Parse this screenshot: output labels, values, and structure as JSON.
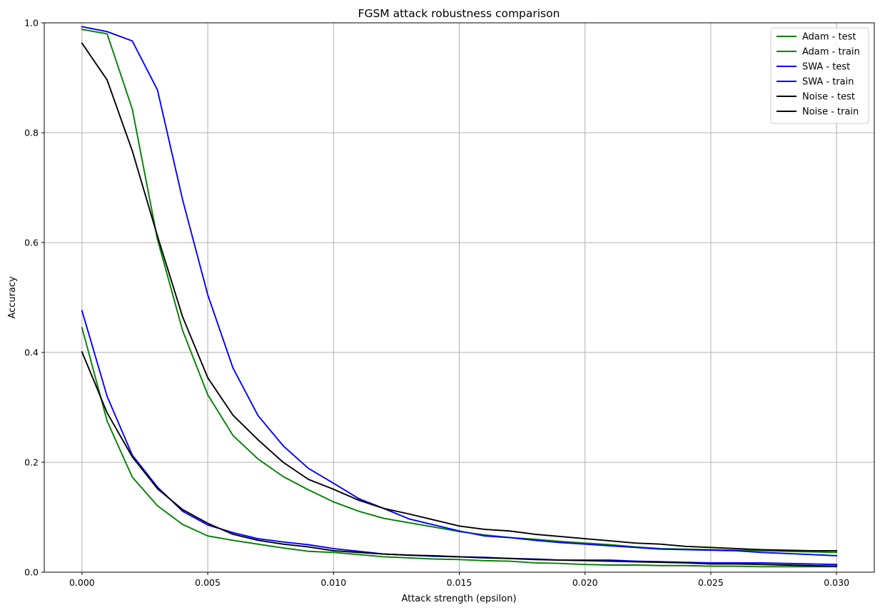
{
  "chart_data": {
    "type": "line",
    "title": "FGSM attack robustness comparison",
    "xlabel": "Attack strength (epsilon)",
    "ylabel": "Accuracy",
    "xlim": [
      -0.0015,
      0.0315
    ],
    "ylim": [
      0.0,
      1.0
    ],
    "xticks": [
      0.0,
      0.005,
      0.01,
      0.015,
      0.02,
      0.025,
      0.03
    ],
    "xtick_labels": [
      "0.000",
      "0.005",
      "0.010",
      "0.015",
      "0.020",
      "0.025",
      "0.030"
    ],
    "yticks": [
      0.0,
      0.2,
      0.4,
      0.6,
      0.8,
      1.0
    ],
    "ytick_labels": [
      "0.0",
      "0.2",
      "0.4",
      "0.6",
      "0.8",
      "1.0"
    ],
    "grid": true,
    "legend_position": "top-right",
    "x": [
      0.0,
      0.001,
      0.002,
      0.003,
      0.004,
      0.005,
      0.006,
      0.007,
      0.008,
      0.009,
      0.01,
      0.011,
      0.012,
      0.013,
      0.014,
      0.015,
      0.016,
      0.017,
      0.018,
      0.019,
      0.02,
      0.021,
      0.022,
      0.023,
      0.024,
      0.025,
      0.026,
      0.027,
      0.028,
      0.029,
      0.03
    ],
    "series": [
      {
        "name": "Adam - test",
        "color": "#008000",
        "values": [
          0.445,
          0.275,
          0.173,
          0.121,
          0.087,
          0.066,
          0.058,
          0.051,
          0.044,
          0.038,
          0.036,
          0.032,
          0.028,
          0.026,
          0.024,
          0.023,
          0.021,
          0.02,
          0.017,
          0.016,
          0.014,
          0.013,
          0.013,
          0.012,
          0.012,
          0.011,
          0.011,
          0.01,
          0.01,
          0.01,
          0.01
        ]
      },
      {
        "name": "Adam - train",
        "color": "#008000",
        "values": [
          0.988,
          0.98,
          0.843,
          0.606,
          0.44,
          0.323,
          0.249,
          0.206,
          0.174,
          0.15,
          0.128,
          0.111,
          0.098,
          0.09,
          0.082,
          0.074,
          0.068,
          0.063,
          0.06,
          0.056,
          0.053,
          0.05,
          0.046,
          0.043,
          0.042,
          0.041,
          0.04,
          0.039,
          0.038,
          0.037,
          0.036
        ]
      },
      {
        "name": "SWA - test",
        "color": "#0000ff",
        "values": [
          0.476,
          0.32,
          0.213,
          0.155,
          0.111,
          0.086,
          0.072,
          0.061,
          0.055,
          0.05,
          0.043,
          0.038,
          0.033,
          0.031,
          0.029,
          0.028,
          0.027,
          0.025,
          0.024,
          0.022,
          0.022,
          0.022,
          0.02,
          0.019,
          0.018,
          0.017,
          0.017,
          0.017,
          0.016,
          0.015,
          0.014
        ]
      },
      {
        "name": "SWA - train",
        "color": "#0000ff",
        "values": [
          0.993,
          0.984,
          0.967,
          0.878,
          0.678,
          0.505,
          0.372,
          0.285,
          0.23,
          0.189,
          0.162,
          0.134,
          0.116,
          0.097,
          0.086,
          0.075,
          0.066,
          0.063,
          0.058,
          0.054,
          0.051,
          0.048,
          0.045,
          0.042,
          0.041,
          0.04,
          0.039,
          0.036,
          0.034,
          0.032,
          0.03
        ]
      },
      {
        "name": "Noise - test",
        "color": "#000000",
        "values": [
          0.401,
          0.29,
          0.21,
          0.152,
          0.114,
          0.089,
          0.069,
          0.058,
          0.051,
          0.046,
          0.039,
          0.036,
          0.033,
          0.031,
          0.03,
          0.028,
          0.026,
          0.025,
          0.023,
          0.022,
          0.021,
          0.02,
          0.019,
          0.018,
          0.017,
          0.015,
          0.015,
          0.014,
          0.013,
          0.012,
          0.011
        ]
      },
      {
        "name": "Noise - train",
        "color": "#000000",
        "values": [
          0.963,
          0.896,
          0.767,
          0.612,
          0.465,
          0.354,
          0.286,
          0.241,
          0.2,
          0.169,
          0.151,
          0.131,
          0.116,
          0.106,
          0.095,
          0.084,
          0.078,
          0.075,
          0.069,
          0.065,
          0.061,
          0.057,
          0.053,
          0.051,
          0.047,
          0.045,
          0.043,
          0.041,
          0.04,
          0.039,
          0.039
        ]
      }
    ]
  }
}
